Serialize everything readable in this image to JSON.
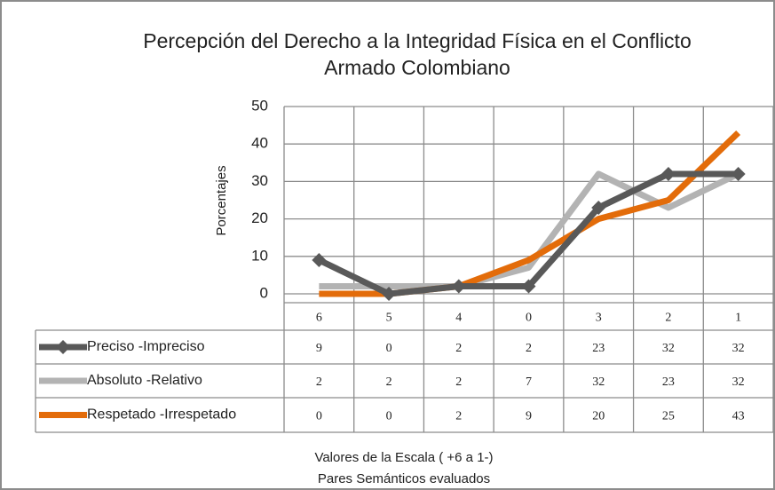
{
  "chart_data": {
    "type": "line",
    "title": [
      "Percepción del Derecho a la Integridad Física en el Conflicto",
      "Armado Colombiano"
    ],
    "y_label": "Porcentajes",
    "x_label": [
      "Valores de la Escala ( +6 a 1-)",
      "Pares Semánticos evaluados"
    ],
    "categories": [
      "6",
      "5",
      "4",
      "0",
      "3",
      "2",
      "1"
    ],
    "series": [
      {
        "name": "Preciso -Impreciso",
        "color": "#595959",
        "marker": "diamond",
        "values": [
          9,
          0,
          2,
          2,
          23,
          32,
          32
        ]
      },
      {
        "name": "Absoluto -Relativo",
        "color": "#b3b3b3",
        "values": [
          2,
          2,
          2,
          7,
          32,
          23,
          32
        ]
      },
      {
        "name": "Respetado -Irrespetado",
        "color": "#e36c0a",
        "values": [
          0,
          0,
          2,
          9,
          20,
          25,
          43
        ]
      }
    ],
    "ylim": [
      0,
      50
    ],
    "yticks": [
      0,
      10,
      20,
      30,
      40,
      50
    ],
    "grid": true,
    "data_table": true
  }
}
